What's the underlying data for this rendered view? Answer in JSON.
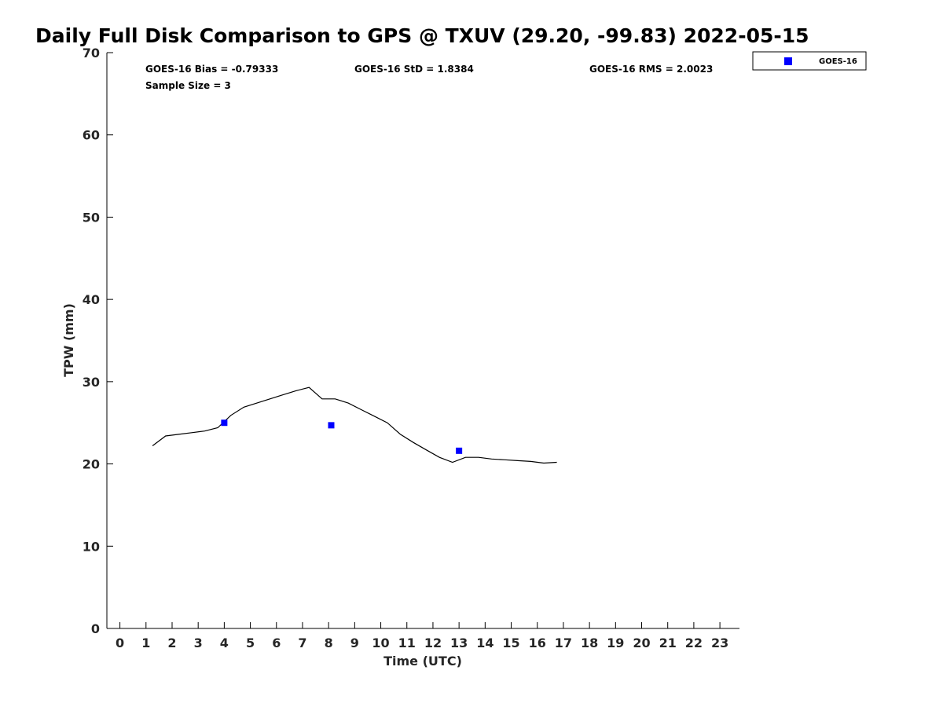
{
  "chart_data": {
    "type": "line",
    "title": "Daily Full Disk Comparison to GPS @ TXUV (29.20, -99.83) 2022-05-15",
    "xlabel": "Time (UTC)",
    "ylabel": "TPW (mm)",
    "xlim": [
      -0.5,
      23.75
    ],
    "ylim": [
      0,
      70
    ],
    "x_ticks": [
      0,
      1,
      2,
      3,
      4,
      5,
      6,
      7,
      8,
      9,
      10,
      11,
      12,
      13,
      14,
      15,
      16,
      17,
      18,
      19,
      20,
      21,
      22,
      23
    ],
    "y_ticks": [
      0,
      10,
      20,
      30,
      40,
      50,
      60,
      70
    ],
    "grid": false,
    "legend_position": "top-right (outside)",
    "stats": {
      "bias": "GOES-16 Bias = -0.79333",
      "std": "GOES-16 StD = 1.8384",
      "rms": "GOES-16 RMS = 2.0023",
      "sample_size": "Sample Size = 3"
    },
    "series": [
      {
        "kind": "line",
        "color": "#000000",
        "x": [
          1.25,
          1.75,
          2.25,
          2.75,
          3.25,
          3.5,
          3.75,
          4.25,
          4.75,
          5.25,
          5.75,
          6.25,
          6.75,
          7.25,
          7.75,
          8.25,
          8.75,
          9.25,
          9.75,
          10.25,
          10.75,
          11.25,
          11.75,
          12.25,
          12.75,
          13.25,
          13.75,
          14.25,
          14.75,
          15.25,
          15.75,
          16.25,
          16.75
        ],
        "y": [
          22.2,
          23.4,
          23.6,
          23.8,
          24.0,
          24.2,
          24.4,
          25.9,
          26.9,
          27.4,
          27.9,
          28.4,
          28.9,
          29.3,
          27.9,
          27.9,
          27.4,
          26.6,
          25.8,
          25.0,
          23.6,
          22.6,
          21.7,
          20.8,
          20.2,
          20.8,
          20.8,
          20.6,
          20.5,
          20.4,
          20.3,
          20.1,
          20.2
        ]
      },
      {
        "name": "GOES-16",
        "kind": "scatter",
        "marker": "square",
        "color": "#0000ff",
        "x": [
          4.0,
          8.1,
          13.0
        ],
        "y": [
          25.0,
          24.7,
          21.6
        ]
      }
    ]
  }
}
